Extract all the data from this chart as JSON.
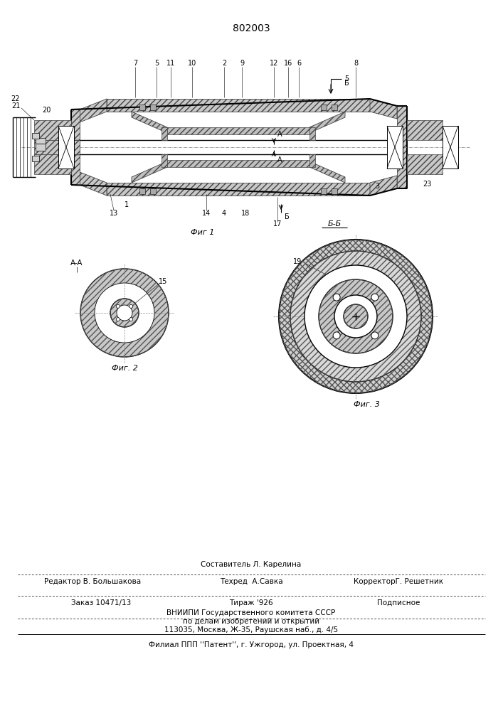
{
  "patent_number": "802003",
  "background_color": "#ffffff",
  "fig1_caption": "Фиг 1",
  "fig2_caption": "Фиг. 2",
  "fig3_caption": "Фиг. 3",
  "section_aa": "A-A",
  "section_bb": "Б-Б",
  "arrow_label": "5",
  "label_7": "7",
  "label_5": "5",
  "label_11": "11",
  "label_10": "10",
  "label_2": "2",
  "label_9": "9",
  "label_12": "12",
  "label_16": "16",
  "label_6": "6",
  "label_8": "8",
  "label_20": "20",
  "label_21": "21",
  "label_22": "22",
  "label_13": "13",
  "label_1": "1",
  "label_14": "14",
  "label_4": "4",
  "label_18": "18",
  "label_17": "17",
  "label_3": "3",
  "label_23": "23",
  "label_15": "15",
  "label_19": "19",
  "footer_sestavitel": "Составитель Л. Карелина",
  "footer_redaktor": "Редактор В. Большакова",
  "footer_tekhred": "Техред  А.Савка",
  "footer_korrektor": "КорректорГ. Решетник",
  "footer_zakaz": "Заказ 10471/13",
  "footer_tirazh": "Тираж '926",
  "footer_podpisnoe": "Подписное",
  "footer_vniip": "ВНИИПИ Государственного комитета СССР",
  "footer_po_delam": "по делам изобретений и открытий",
  "footer_address": "113035, Москва, Ж-35, Раушская наб., д. 4/5",
  "footer_filial": "Филиал ППП ''Патент'', г. Ужгород, ул. Проектная, 4"
}
